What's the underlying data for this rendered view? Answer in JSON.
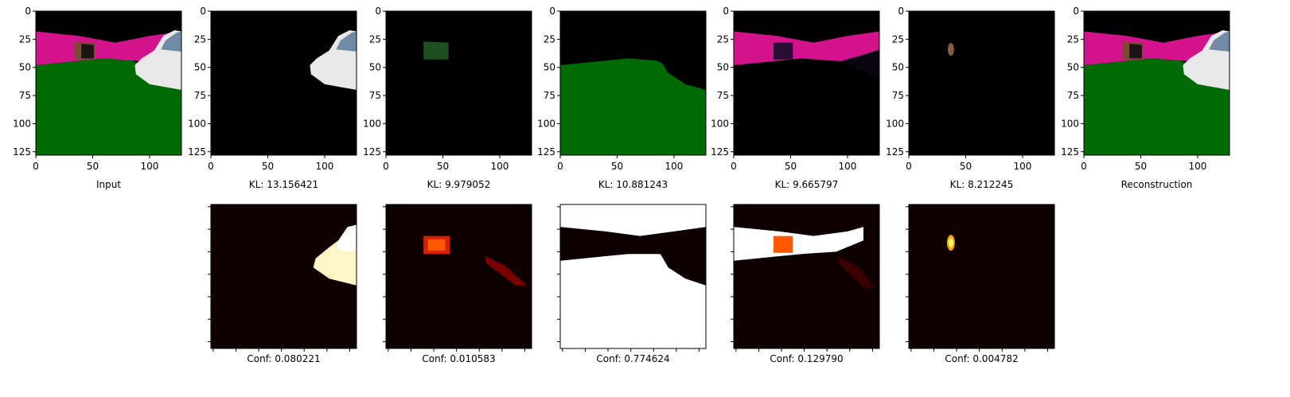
{
  "figure": {
    "top_row": [
      {
        "caption": "Input",
        "kind": "input"
      },
      {
        "caption": "KL: 13.156421",
        "kind": "car"
      },
      {
        "caption": "KL: 9.979052",
        "kind": "box"
      },
      {
        "caption": "KL: 10.881243",
        "kind": "ground"
      },
      {
        "caption": "KL: 9.665797",
        "kind": "wall"
      },
      {
        "caption": "KL: 8.212245",
        "kind": "small"
      },
      {
        "caption": "Reconstruction",
        "kind": "input"
      }
    ],
    "bottom_row": [
      {
        "caption": "Conf: 0.080221",
        "kind": "car"
      },
      {
        "caption": "Conf: 0.010583",
        "kind": "box"
      },
      {
        "caption": "Conf: 0.774624",
        "kind": "ground"
      },
      {
        "caption": "Conf: 0.129790",
        "kind": "wall"
      },
      {
        "caption": "Conf: 0.004782",
        "kind": "small"
      }
    ],
    "x_ticks": [
      "0",
      "50",
      "100"
    ],
    "y_ticks": [
      "0",
      "25",
      "50",
      "75",
      "100",
      "125"
    ]
  },
  "colors": {
    "magenta": "#d4128c",
    "green": "#006a05",
    "car_white": "#e8e8e8",
    "heat_dark": "#0f0000",
    "heat_hot": "#ff5a00",
    "heat_white": "#ffffff"
  },
  "chart_data": {
    "type": "heatmap",
    "panels": [
      {
        "row": "top",
        "caption": "Input",
        "image_extent": {
          "x": [
            0,
            128
          ],
          "y": [
            0,
            128
          ]
        }
      },
      {
        "row": "top",
        "caption": "KL: 13.156421",
        "kl": 13.156421
      },
      {
        "row": "top",
        "caption": "KL: 9.979052",
        "kl": 9.979052
      },
      {
        "row": "top",
        "caption": "KL: 10.881243",
        "kl": 10.881243
      },
      {
        "row": "top",
        "caption": "KL: 9.665797",
        "kl": 9.665797
      },
      {
        "row": "top",
        "caption": "KL: 8.212245",
        "kl": 8.212245
      },
      {
        "row": "top",
        "caption": "Reconstruction"
      },
      {
        "row": "bottom",
        "caption": "Conf: 0.080221",
        "conf": 0.080221
      },
      {
        "row": "bottom",
        "caption": "Conf: 0.010583",
        "conf": 0.010583
      },
      {
        "row": "bottom",
        "caption": "Conf: 0.774624",
        "conf": 0.774624
      },
      {
        "row": "bottom",
        "caption": "Conf: 0.129790",
        "conf": 0.12979
      },
      {
        "row": "bottom",
        "caption": "Conf: 0.004782",
        "conf": 0.004782
      }
    ],
    "xlim": [
      0,
      128
    ],
    "ylim": [
      128,
      0
    ],
    "x_ticks": [
      0,
      50,
      100
    ],
    "y_ticks": [
      0,
      25,
      50,
      75,
      100,
      125
    ],
    "colormap": "hot"
  }
}
